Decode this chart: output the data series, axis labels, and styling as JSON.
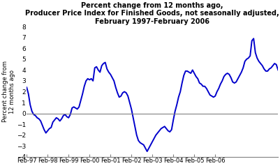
{
  "title_line1": "Percent change from 12 months ago,",
  "title_line2": "Producer Price Index for Finished Goods, not seasonally adjusted,",
  "title_line3": "February 1997-February 2006",
  "ylabel": "Percent change from\n12 months ago",
  "xlabel_ticks": [
    "Feb-97",
    "Feb-98",
    "Feb-99",
    "Feb-00",
    "Feb-01",
    "Feb-02",
    "Feb-03",
    "Feb-04",
    "Feb-05",
    "Feb-06"
  ],
  "ylim": [
    -4,
    8
  ],
  "yticks": [
    -4,
    -3,
    -2,
    -1,
    0,
    1,
    2,
    3,
    4,
    5,
    6,
    7,
    8
  ],
  "line_color": "#0000CC",
  "line_width": 1.4,
  "background_color": "#ffffff",
  "values": [
    2.4,
    1.8,
    0.8,
    0.2,
    -0.1,
    -0.2,
    -0.4,
    -0.5,
    -0.7,
    -1.1,
    -1.5,
    -1.8,
    -1.6,
    -1.4,
    -1.3,
    -0.8,
    -0.6,
    -0.4,
    -0.5,
    -0.7,
    -0.5,
    -0.2,
    -0.1,
    -0.3,
    -0.4,
    -0.1,
    0.5,
    0.6,
    0.5,
    0.4,
    0.6,
    1.2,
    1.8,
    2.5,
    3.0,
    3.2,
    3.1,
    3.2,
    3.0,
    4.2,
    4.3,
    4.0,
    3.8,
    4.4,
    4.6,
    4.7,
    4.1,
    3.8,
    3.6,
    3.3,
    3.0,
    2.4,
    1.9,
    1.5,
    1.6,
    1.9,
    2.0,
    1.9,
    1.6,
    1.0,
    0.4,
    -0.4,
    -1.2,
    -2.0,
    -2.5,
    -2.7,
    -2.8,
    -2.9,
    -3.2,
    -3.5,
    -3.2,
    -2.9,
    -2.6,
    -2.3,
    -2.0,
    -1.8,
    -1.6,
    -1.4,
    -1.3,
    -1.2,
    -1.4,
    -1.6,
    -1.7,
    -1.5,
    -0.6,
    0.2,
    0.8,
    1.5,
    2.0,
    2.8,
    3.5,
    3.9,
    3.9,
    3.8,
    3.7,
    4.0,
    3.7,
    3.4,
    3.2,
    2.8,
    2.7,
    2.5,
    2.5,
    2.3,
    2.0,
    1.7,
    1.6,
    1.5,
    1.6,
    2.0,
    2.3,
    2.7,
    3.0,
    3.4,
    3.6,
    3.7,
    3.6,
    3.3,
    2.9,
    2.8,
    2.9,
    3.2,
    3.5,
    3.8,
    4.2,
    4.8,
    5.0,
    5.1,
    5.3,
    6.7,
    6.9,
    5.6,
    5.1,
    4.8,
    4.6,
    4.4,
    4.1,
    3.9,
    3.9,
    4.1,
    4.2,
    4.4,
    4.6,
    4.5,
    4.0
  ]
}
